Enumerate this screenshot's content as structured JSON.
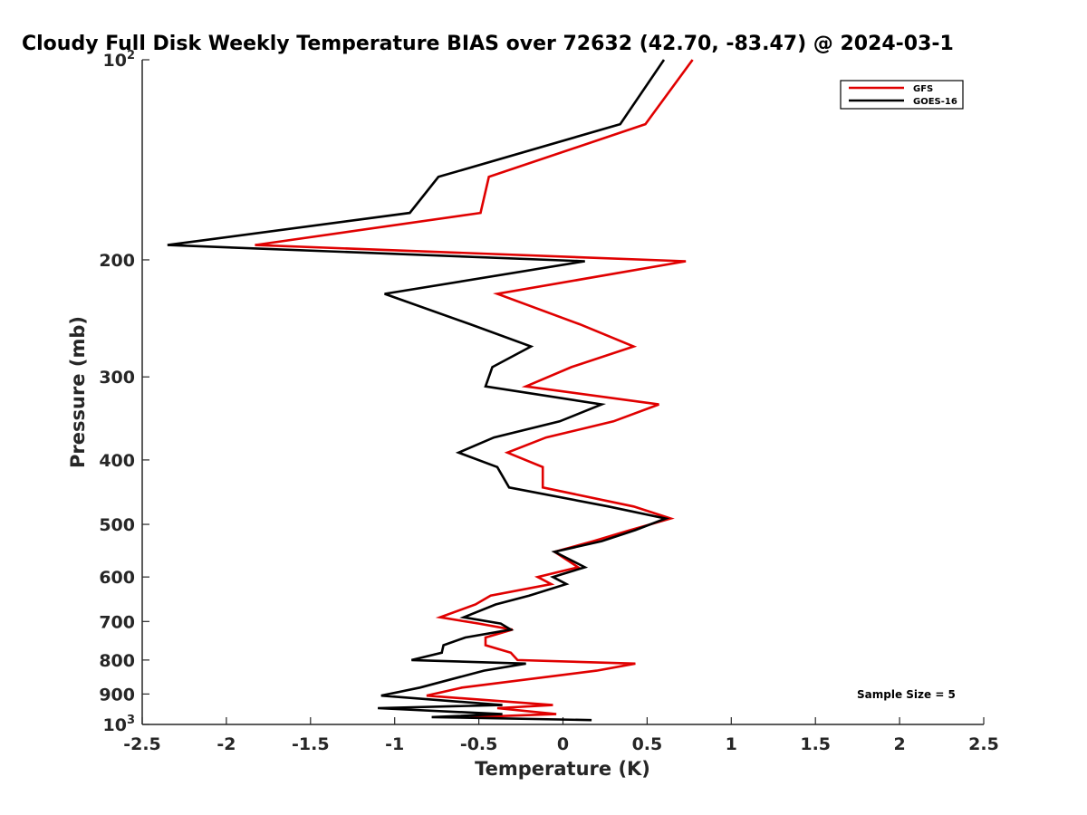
{
  "chart_data": {
    "type": "line",
    "title": "Cloudy Full Disk Weekly Temperature BIAS over 72632 (42.70, -83.47) @ 2024-03-1",
    "xlabel": "Temperature (K)",
    "ylabel": "Pressure (mb)",
    "xlim": [
      -2.5,
      2.5
    ],
    "ylim": [
      100,
      1000
    ],
    "yscale": "log",
    "y_reversed": true,
    "grid": false,
    "legend_position": "top-right",
    "x_ticks": [
      "-2.5",
      "-2",
      "-1.5",
      "-1",
      "-0.5",
      "0",
      "0.5",
      "1",
      "1.5",
      "2",
      "2.5"
    ],
    "x_tick_values": [
      -2.5,
      -2,
      -1.5,
      -1,
      -0.5,
      0,
      0.5,
      1,
      1.5,
      2,
      2.5
    ],
    "y_ticks": [
      {
        "value": 100,
        "base": "10",
        "exp": "2"
      },
      {
        "value": 200,
        "label": "200"
      },
      {
        "value": 300,
        "label": "300"
      },
      {
        "value": 400,
        "label": "400"
      },
      {
        "value": 500,
        "label": "500"
      },
      {
        "value": 600,
        "label": "600"
      },
      {
        "value": 700,
        "label": "700"
      },
      {
        "value": 800,
        "label": "800"
      },
      {
        "value": 900,
        "label": "900"
      },
      {
        "value": 1000,
        "base": "10",
        "exp": "3"
      }
    ],
    "annotation": "Sample Size = 5",
    "series": [
      {
        "name": "GFS",
        "color": "#e00000",
        "points": [
          [
            0.77,
            100
          ],
          [
            0.49,
            125
          ],
          [
            -0.44,
            150
          ],
          [
            -0.49,
            170
          ],
          [
            -1.83,
            190
          ],
          [
            0.73,
            201
          ],
          [
            -0.39,
            225
          ],
          [
            0.1,
            250
          ],
          [
            0.42,
            270
          ],
          [
            0.05,
            290
          ],
          [
            -0.22,
            310
          ],
          [
            0.57,
            330
          ],
          [
            0.3,
            350
          ],
          [
            -0.1,
            370
          ],
          [
            -0.33,
            390
          ],
          [
            -0.12,
            410
          ],
          [
            -0.12,
            440
          ],
          [
            0.42,
            470
          ],
          [
            0.64,
            490
          ],
          [
            0.4,
            510
          ],
          [
            0.18,
            530
          ],
          [
            -0.05,
            550
          ],
          [
            0.09,
            580
          ],
          [
            -0.15,
            600
          ],
          [
            -0.07,
            615
          ],
          [
            -0.43,
            640
          ],
          [
            -0.52,
            660
          ],
          [
            -0.73,
            690
          ],
          [
            -0.5,
            705
          ],
          [
            -0.3,
            720
          ],
          [
            -0.46,
            740
          ],
          [
            -0.46,
            760
          ],
          [
            -0.31,
            780
          ],
          [
            -0.27,
            800
          ],
          [
            0.43,
            810
          ],
          [
            0.2,
            830
          ],
          [
            -0.6,
            880
          ],
          [
            -0.81,
            905
          ],
          [
            -0.06,
            935
          ],
          [
            -0.39,
            945
          ],
          [
            -0.04,
            965
          ],
          [
            -0.55,
            975
          ]
        ]
      },
      {
        "name": "GOES-16",
        "color": "#000000",
        "points": [
          [
            0.6,
            100
          ],
          [
            0.34,
            125
          ],
          [
            -0.74,
            150
          ],
          [
            -0.91,
            170
          ],
          [
            -2.35,
            190
          ],
          [
            0.13,
            201
          ],
          [
            -1.06,
            225
          ],
          [
            -0.55,
            250
          ],
          [
            -0.19,
            270
          ],
          [
            -0.42,
            290
          ],
          [
            -0.46,
            310
          ],
          [
            0.23,
            330
          ],
          [
            -0.02,
            350
          ],
          [
            -0.41,
            370
          ],
          [
            -0.62,
            390
          ],
          [
            -0.39,
            410
          ],
          [
            -0.32,
            440
          ],
          [
            0.27,
            470
          ],
          [
            0.61,
            490
          ],
          [
            0.43,
            510
          ],
          [
            0.23,
            530
          ],
          [
            -0.05,
            550
          ],
          [
            0.13,
            580
          ],
          [
            -0.06,
            600
          ],
          [
            0.02,
            615
          ],
          [
            -0.2,
            640
          ],
          [
            -0.4,
            660
          ],
          [
            -0.59,
            690
          ],
          [
            -0.37,
            705
          ],
          [
            -0.31,
            720
          ],
          [
            -0.58,
            740
          ],
          [
            -0.71,
            760
          ],
          [
            -0.72,
            780
          ],
          [
            -0.9,
            800
          ],
          [
            -0.22,
            810
          ],
          [
            -0.47,
            830
          ],
          [
            -0.85,
            880
          ],
          [
            -1.08,
            905
          ],
          [
            -0.36,
            935
          ],
          [
            -1.1,
            945
          ],
          [
            -0.36,
            965
          ],
          [
            -0.78,
            975
          ],
          [
            0.17,
            985
          ]
        ]
      }
    ]
  }
}
